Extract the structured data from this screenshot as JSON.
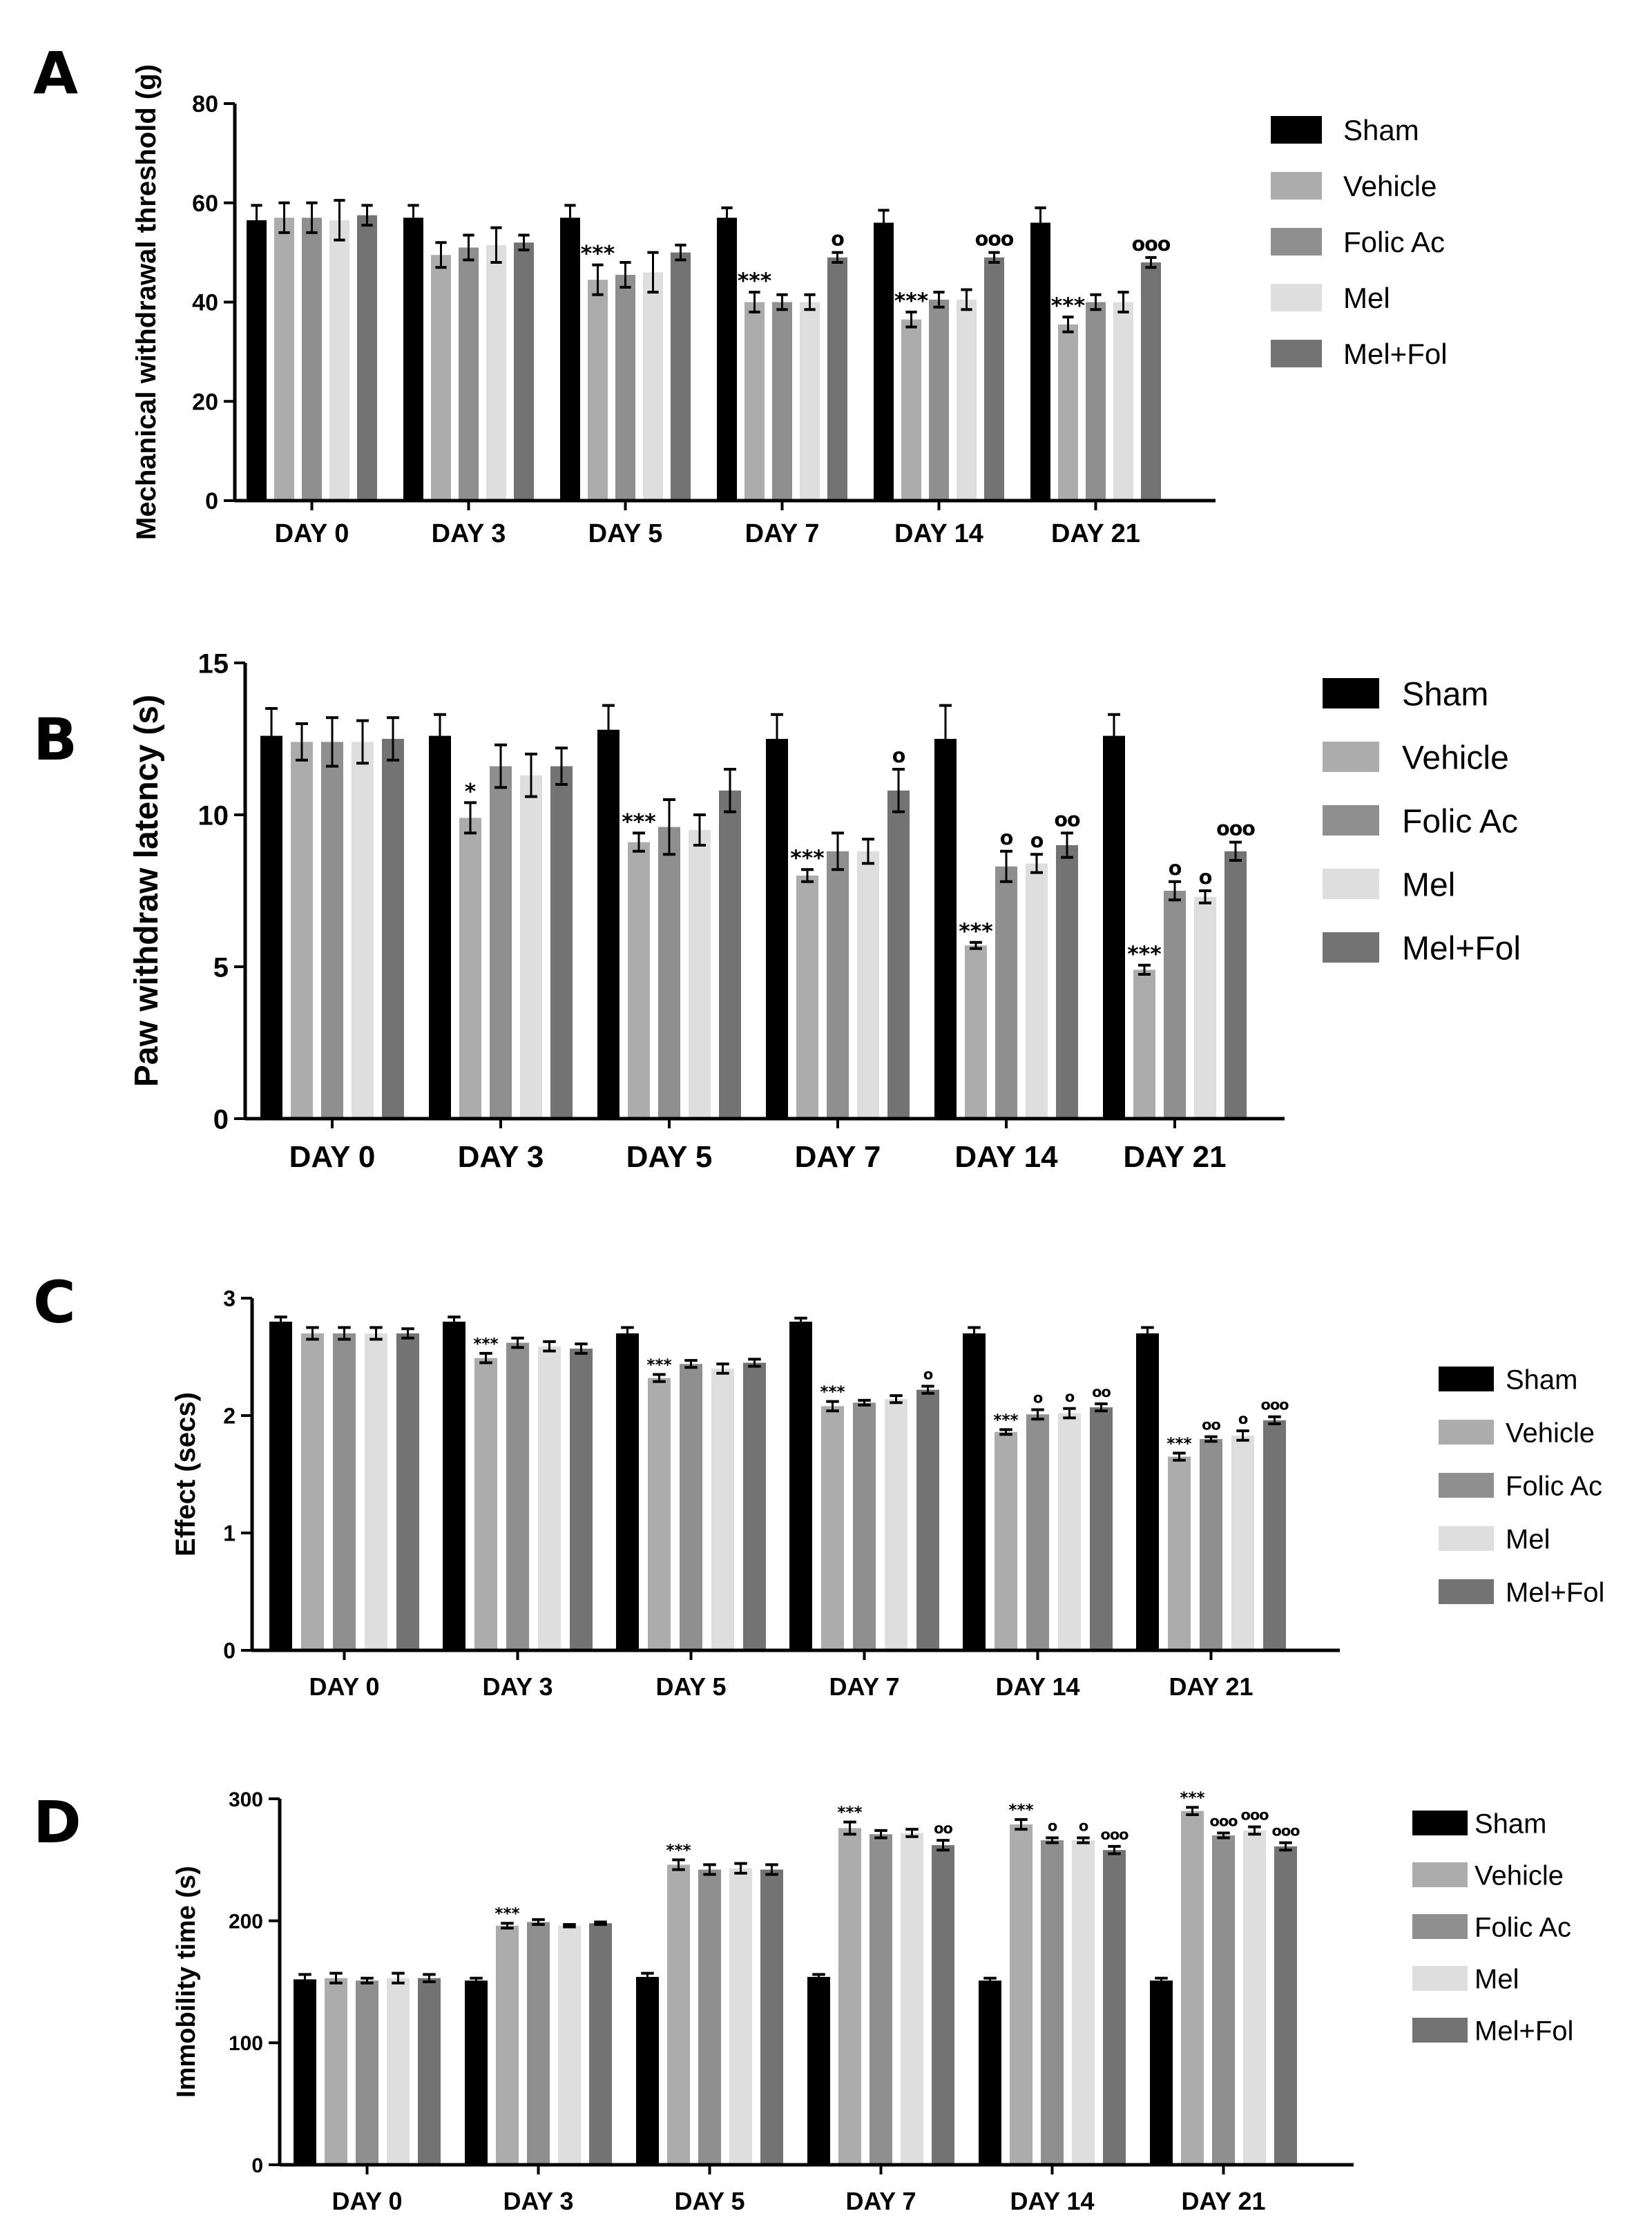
{
  "figure": {
    "groups": [
      "Sham",
      "Vehicle",
      "Folic Ac",
      "Mel",
      "Mel+Fol"
    ],
    "colors": [
      "#000000",
      "#acacac",
      "#8f8f8f",
      "#dedede",
      "#737373"
    ]
  },
  "chart_data": [
    {
      "panel": "A",
      "type": "bar",
      "ylabel": "Mechanical withdrawal threshold (g)",
      "xlabel": "",
      "ylim": [
        0,
        80
      ],
      "yticks": [
        0,
        20,
        40,
        60,
        80
      ],
      "categories": [
        "DAY 0",
        "DAY 3",
        "DAY 5",
        "DAY 7",
        "DAY 14",
        "DAY 21"
      ],
      "series": [
        {
          "name": "Sham",
          "values": [
            56.5,
            57,
            57,
            57,
            56,
            56
          ],
          "errors": [
            3,
            2.5,
            2.5,
            2,
            2.5,
            3
          ]
        },
        {
          "name": "Vehicle",
          "values": [
            57,
            49.5,
            44.5,
            40,
            36.5,
            35.5
          ],
          "errors": [
            3,
            2.5,
            3,
            2,
            1.5,
            1.5
          ]
        },
        {
          "name": "Folic Ac",
          "values": [
            57,
            51,
            45.5,
            40,
            40.5,
            40
          ],
          "errors": [
            3,
            2.5,
            2.5,
            1.5,
            1.5,
            1.5
          ]
        },
        {
          "name": "Mel",
          "values": [
            56.5,
            51.5,
            46,
            40,
            40.5,
            40
          ],
          "errors": [
            4,
            3.5,
            4,
            1.5,
            2,
            2
          ]
        },
        {
          "name": "Mel+Fol",
          "values": [
            57.5,
            52,
            50,
            49,
            49,
            48
          ],
          "errors": [
            2,
            1.5,
            1.5,
            1,
            1,
            1
          ]
        }
      ],
      "annotations": [
        {
          "group": "Vehicle",
          "category": "DAY 5",
          "text": "***"
        },
        {
          "group": "Vehicle",
          "category": "DAY 7",
          "text": "***"
        },
        {
          "group": "Vehicle",
          "category": "DAY 14",
          "text": "***"
        },
        {
          "group": "Vehicle",
          "category": "DAY 21",
          "text": "***"
        },
        {
          "group": "Mel+Fol",
          "category": "DAY 7",
          "text": "o"
        },
        {
          "group": "Mel+Fol",
          "category": "DAY 14",
          "text": "ooo"
        },
        {
          "group": "Mel+Fol",
          "category": "DAY 21",
          "text": "ooo"
        }
      ]
    },
    {
      "panel": "B",
      "type": "bar",
      "ylabel": "Paw withdraw latency (s)",
      "xlabel": "",
      "ylim": [
        0,
        15
      ],
      "yticks": [
        0,
        5,
        10,
        15
      ],
      "categories": [
        "DAY 0",
        "DAY 3",
        "DAY 5",
        "DAY 7",
        "DAY 14",
        "DAY 21"
      ],
      "series": [
        {
          "name": "Sham",
          "values": [
            12.6,
            12.6,
            12.8,
            12.5,
            12.5,
            12.6
          ],
          "errors": [
            0.9,
            0.7,
            0.8,
            0.8,
            1.1,
            0.7
          ]
        },
        {
          "name": "Vehicle",
          "values": [
            12.4,
            9.9,
            9.1,
            8.0,
            5.7,
            4.9
          ],
          "errors": [
            0.6,
            0.5,
            0.3,
            0.2,
            0.1,
            0.15
          ]
        },
        {
          "name": "Folic Ac",
          "values": [
            12.4,
            11.6,
            9.6,
            8.8,
            8.3,
            7.5
          ],
          "errors": [
            0.8,
            0.7,
            0.9,
            0.6,
            0.5,
            0.3
          ]
        },
        {
          "name": "Mel",
          "values": [
            12.4,
            11.3,
            9.5,
            8.8,
            8.4,
            7.3
          ],
          "errors": [
            0.7,
            0.7,
            0.5,
            0.4,
            0.3,
            0.2
          ]
        },
        {
          "name": "Mel+Fol",
          "values": [
            12.5,
            11.6,
            10.8,
            10.8,
            9.0,
            8.8
          ],
          "errors": [
            0.7,
            0.6,
            0.7,
            0.7,
            0.4,
            0.3
          ]
        }
      ],
      "annotations": [
        {
          "group": "Vehicle",
          "category": "DAY 3",
          "text": "*"
        },
        {
          "group": "Vehicle",
          "category": "DAY 5",
          "text": "***"
        },
        {
          "group": "Vehicle",
          "category": "DAY 7",
          "text": "***"
        },
        {
          "group": "Vehicle",
          "category": "DAY 14",
          "text": "***"
        },
        {
          "group": "Vehicle",
          "category": "DAY 21",
          "text": "***"
        },
        {
          "group": "Mel+Fol",
          "category": "DAY 7",
          "text": "o"
        },
        {
          "group": "Folic Ac",
          "category": "DAY 14",
          "text": "o"
        },
        {
          "group": "Mel",
          "category": "DAY 14",
          "text": "o"
        },
        {
          "group": "Mel+Fol",
          "category": "DAY 14",
          "text": "oo"
        },
        {
          "group": "Folic Ac",
          "category": "DAY 21",
          "text": "o"
        },
        {
          "group": "Mel",
          "category": "DAY 21",
          "text": "o"
        },
        {
          "group": "Mel+Fol",
          "category": "DAY 21",
          "text": "ooo"
        }
      ]
    },
    {
      "panel": "C",
      "type": "bar",
      "ylabel": "Effect (secs)",
      "xlabel": "",
      "ylim": [
        0,
        3
      ],
      "yticks": [
        0,
        1,
        2,
        3
      ],
      "categories": [
        "DAY 0",
        "DAY 3",
        "DAY 5",
        "DAY 7",
        "DAY 14",
        "DAY 21"
      ],
      "series": [
        {
          "name": "Sham",
          "values": [
            2.8,
            2.8,
            2.7,
            2.8,
            2.7,
            2.7
          ],
          "errors": [
            0.04,
            0.04,
            0.05,
            0.03,
            0.05,
            0.05
          ]
        },
        {
          "name": "Vehicle",
          "values": [
            2.7,
            2.49,
            2.32,
            2.08,
            1.86,
            1.65
          ],
          "errors": [
            0.05,
            0.04,
            0.03,
            0.04,
            0.02,
            0.03
          ]
        },
        {
          "name": "Folic Ac",
          "values": [
            2.7,
            2.62,
            2.44,
            2.11,
            2.01,
            1.8
          ],
          "errors": [
            0.05,
            0.04,
            0.03,
            0.02,
            0.04,
            0.02
          ]
        },
        {
          "name": "Mel",
          "values": [
            2.7,
            2.59,
            2.4,
            2.14,
            2.02,
            1.83
          ],
          "errors": [
            0.05,
            0.04,
            0.04,
            0.03,
            0.04,
            0.04
          ]
        },
        {
          "name": "Mel+Fol",
          "values": [
            2.7,
            2.57,
            2.45,
            2.22,
            2.07,
            1.96
          ],
          "errors": [
            0.04,
            0.04,
            0.03,
            0.03,
            0.03,
            0.03
          ]
        }
      ],
      "annotations": [
        {
          "group": "Vehicle",
          "category": "DAY 3",
          "text": "***"
        },
        {
          "group": "Vehicle",
          "category": "DAY 5",
          "text": "***"
        },
        {
          "group": "Vehicle",
          "category": "DAY 7",
          "text": "***"
        },
        {
          "group": "Mel+Fol",
          "category": "DAY 7",
          "text": "o"
        },
        {
          "group": "Vehicle",
          "category": "DAY 14",
          "text": "***"
        },
        {
          "group": "Folic Ac",
          "category": "DAY 14",
          "text": "o"
        },
        {
          "group": "Mel",
          "category": "DAY 14",
          "text": "o"
        },
        {
          "group": "Mel+Fol",
          "category": "DAY 14",
          "text": "oo"
        },
        {
          "group": "Vehicle",
          "category": "DAY 21",
          "text": "***"
        },
        {
          "group": "Folic Ac",
          "category": "DAY 21",
          "text": "oo"
        },
        {
          "group": "Mel",
          "category": "DAY 21",
          "text": "o"
        },
        {
          "group": "Mel+Fol",
          "category": "DAY 21",
          "text": "ooo"
        }
      ]
    },
    {
      "panel": "D",
      "type": "bar",
      "ylabel": "Immobility time (s)",
      "xlabel": "",
      "ylim": [
        0,
        300
      ],
      "yticks": [
        0,
        100,
        200,
        300
      ],
      "categories": [
        "DAY 0",
        "DAY 3",
        "DAY 5",
        "DAY 7",
        "DAY 14",
        "DAY 21"
      ],
      "series": [
        {
          "name": "Sham",
          "values": [
            152,
            151,
            154,
            154,
            151,
            151
          ],
          "errors": [
            4,
            2,
            3,
            2,
            2,
            2
          ]
        },
        {
          "name": "Vehicle",
          "values": [
            153,
            196,
            246,
            276,
            279,
            290
          ],
          "errors": [
            4,
            2,
            4,
            5,
            4,
            3
          ]
        },
        {
          "name": "Folic Ac",
          "values": [
            151,
            199,
            242,
            271,
            266,
            270
          ],
          "errors": [
            2,
            2,
            4,
            3,
            2,
            2
          ]
        },
        {
          "name": "Mel",
          "values": [
            153,
            196,
            243,
            272,
            266,
            274
          ],
          "errors": [
            4,
            1,
            4,
            3,
            2,
            3
          ]
        },
        {
          "name": "Mel+Fol",
          "values": [
            153,
            198,
            242,
            262,
            258,
            261
          ],
          "errors": [
            3,
            1,
            4,
            4,
            3,
            3
          ]
        }
      ],
      "annotations": [
        {
          "group": "Vehicle",
          "category": "DAY 3",
          "text": "***"
        },
        {
          "group": "Vehicle",
          "category": "DAY 5",
          "text": "***"
        },
        {
          "group": "Vehicle",
          "category": "DAY 7",
          "text": "***"
        },
        {
          "group": "Mel+Fol",
          "category": "DAY 7",
          "text": "oo"
        },
        {
          "group": "Vehicle",
          "category": "DAY 14",
          "text": "***"
        },
        {
          "group": "Folic Ac",
          "category": "DAY 14",
          "text": "o"
        },
        {
          "group": "Mel",
          "category": "DAY 14",
          "text": "o"
        },
        {
          "group": "Mel+Fol",
          "category": "DAY 14",
          "text": "ooo"
        },
        {
          "group": "Vehicle",
          "category": "DAY 21",
          "text": "***"
        },
        {
          "group": "Folic Ac",
          "category": "DAY 21",
          "text": "ooo"
        },
        {
          "group": "Mel",
          "category": "DAY 21",
          "text": "ooo"
        },
        {
          "group": "Mel+Fol",
          "category": "DAY 21",
          "text": "ooo"
        }
      ]
    }
  ]
}
